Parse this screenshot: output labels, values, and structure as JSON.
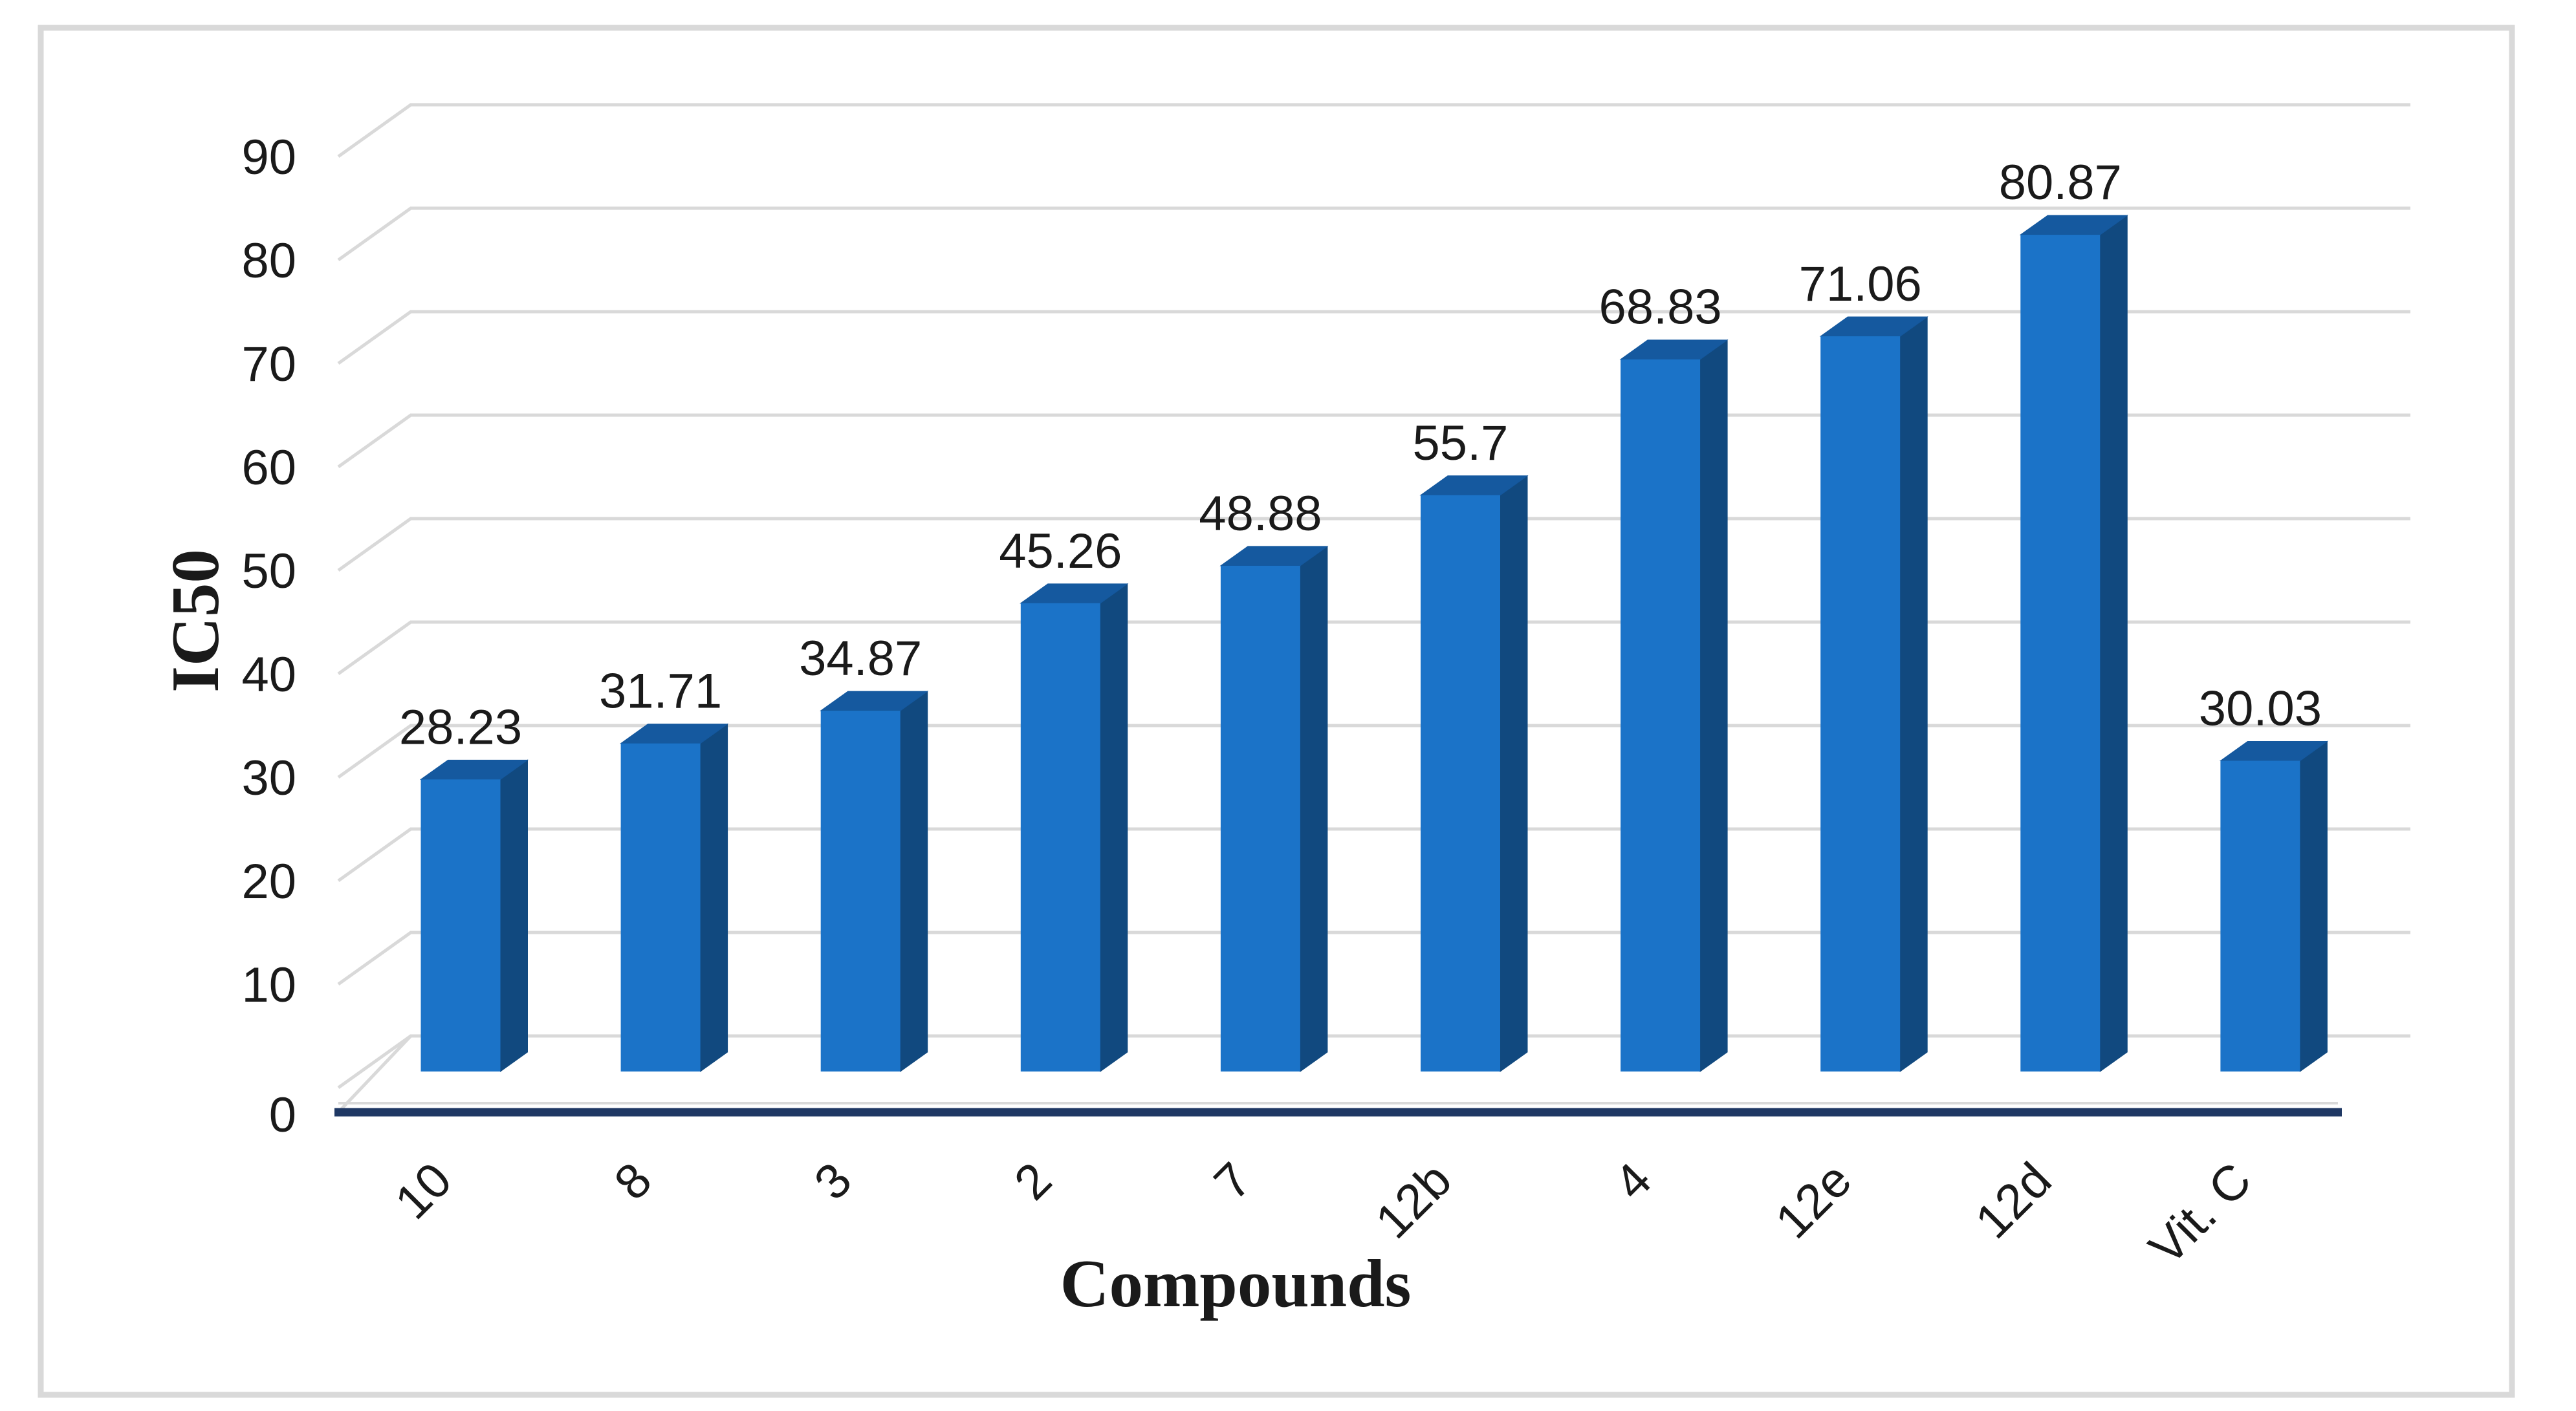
{
  "chart_data": {
    "type": "bar",
    "variant": "3d-column",
    "title": "",
    "categories": [
      "10",
      "8",
      "3",
      "2",
      "7",
      "12b",
      "4",
      "12e",
      "12d",
      "Vit. C"
    ],
    "values": [
      28.23,
      31.71,
      34.87,
      45.26,
      48.88,
      55.7,
      68.83,
      71.06,
      80.87,
      30.03
    ],
    "value_labels": [
      "28.23",
      "31.71",
      "34.87",
      "45.26",
      "48.88",
      "55.7",
      "68.83",
      "71.06",
      "80.87",
      "30.03"
    ],
    "xlabel": "Compounds",
    "ylabel": "IC50",
    "ylim": [
      0,
      90
    ],
    "ytick_interval": 10,
    "ytick_labels": [
      "0",
      "10",
      "20",
      "30",
      "40",
      "50",
      "60",
      "70",
      "80",
      "90"
    ],
    "grid": true,
    "legend": "none",
    "colors": {
      "bar_front": "#1B73C8",
      "bar_top": "#15599F",
      "bar_side": "#11497F",
      "axis_line": "#1F3864",
      "gridline": "#D9D9D9",
      "figure_border": "#D9D9D9",
      "label_text": "#1A1A1A",
      "background": "#FFFFFF"
    }
  }
}
